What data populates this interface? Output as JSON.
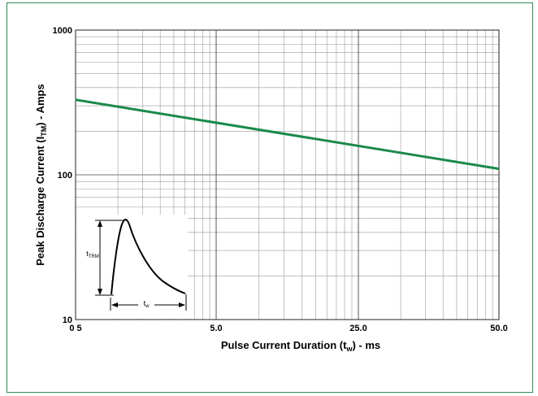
{
  "chart_data": {
    "type": "line",
    "xlabel": {
      "main": "Pulse Current Duration (t",
      "sub": "w",
      "tail": ") - ms"
    },
    "ylabel": {
      "main": "Peak Discharge Current (I",
      "sub": "TM",
      "tail": ") - Amps"
    },
    "y_scale": "log",
    "ylim": [
      10,
      1000
    ],
    "xlim": [
      0.5,
      50.0
    ],
    "x_tick_labels": [
      "0 5",
      "5.0",
      "25.0",
      "50.0"
    ],
    "x_tick_values": [
      0.5,
      5.0,
      25.0,
      50.0
    ],
    "y_tick_labels": [
      "1000",
      "100",
      "10"
    ],
    "y_tick_values": [
      1000,
      100,
      10
    ],
    "grid": true,
    "series": [
      {
        "color": "#1a8a4a",
        "x": [
          0.5,
          50.0
        ],
        "y": [
          330,
          110
        ]
      }
    ],
    "inset": {
      "height_label": {
        "main": "t",
        "sub": "TRM"
      },
      "width_label": {
        "main": "t",
        "sub": "w"
      }
    }
  },
  "colors": {
    "border": "#2e8b57",
    "grid": "#999999",
    "line": "#1a8a4a"
  }
}
